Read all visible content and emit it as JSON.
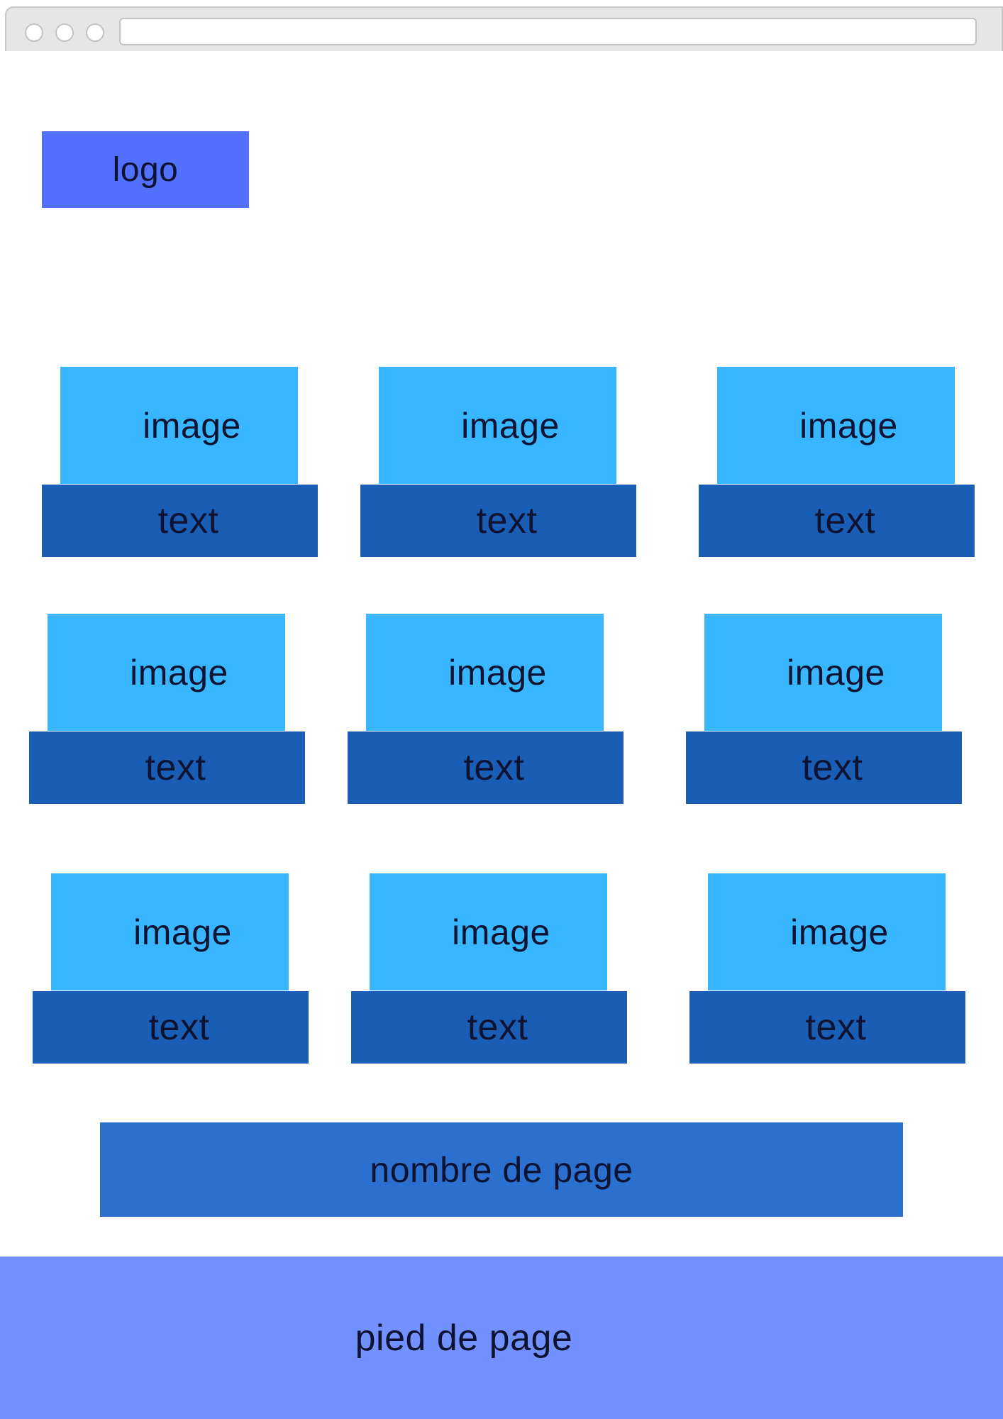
{
  "browser": {
    "address_bar_value": ""
  },
  "header": {
    "logo_label": "logo"
  },
  "grid": {
    "cards": [
      {
        "image_label": "image",
        "text_label": "text"
      },
      {
        "image_label": "image",
        "text_label": "text"
      },
      {
        "image_label": "image",
        "text_label": "text"
      },
      {
        "image_label": "image",
        "text_label": "text"
      },
      {
        "image_label": "image",
        "text_label": "text"
      },
      {
        "image_label": "image",
        "text_label": "text"
      },
      {
        "image_label": "image",
        "text_label": "text"
      },
      {
        "image_label": "image",
        "text_label": "text"
      },
      {
        "image_label": "image",
        "text_label": "text"
      }
    ]
  },
  "pagination": {
    "label": "nombre de page"
  },
  "footer": {
    "label": "pied de page"
  },
  "colors": {
    "logo": "#5270ff",
    "image_block": "#38b6ff",
    "text_block": "#1a5db5",
    "pagination": "#2b6fcf",
    "footer": "#7390ff"
  }
}
